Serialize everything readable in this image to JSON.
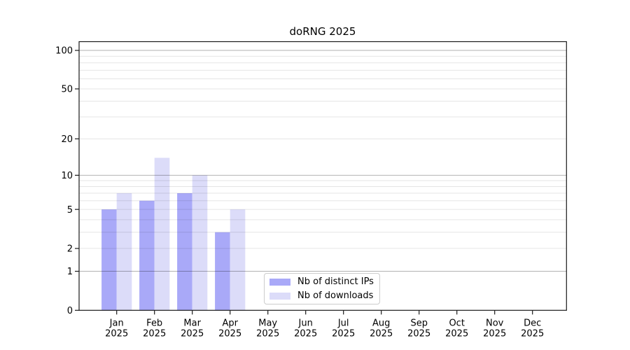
{
  "title": "doRNG 2025",
  "chart_data": {
    "type": "bar",
    "title": "doRNG 2025",
    "categories": [
      "Jan",
      "Feb",
      "Mar",
      "Apr",
      "May",
      "Jun",
      "Jul",
      "Aug",
      "Sep",
      "Oct",
      "Nov",
      "Dec"
    ],
    "category_year": "2025",
    "series": [
      {
        "name": "Nb of distinct IPs",
        "color": "#a9a9f8",
        "values": [
          5,
          6,
          7,
          3,
          0,
          0,
          0,
          0,
          0,
          0,
          0,
          0
        ]
      },
      {
        "name": "Nb of downloads",
        "color": "#dcdcf9",
        "values": [
          7,
          14,
          10,
          5,
          0,
          0,
          0,
          0,
          0,
          0,
          0,
          0
        ]
      }
    ],
    "yscale": "log1p",
    "ylim": [
      0,
      117
    ],
    "yticks": [
      0,
      1,
      2,
      5,
      10,
      20,
      50,
      100
    ],
    "major_gridlines": [
      1,
      10,
      100
    ],
    "minor_gridlines": [
      2,
      3,
      4,
      5,
      6,
      7,
      8,
      9,
      20,
      30,
      40,
      50,
      60,
      70,
      80,
      90
    ],
    "grid": true,
    "legend_position": "lower center",
    "xlabel": "",
    "ylabel": ""
  },
  "colors": {
    "axis": "#1a1a1a",
    "major_grid": "rgba(0,0,0,0.30)",
    "minor_grid": "rgba(0,0,0,0.10)"
  }
}
